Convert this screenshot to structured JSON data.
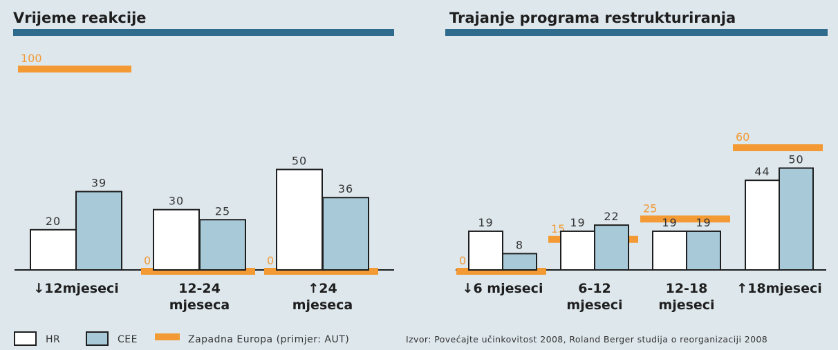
{
  "chart_data": [
    {
      "type": "bar",
      "title": "Vrijeme reakcije",
      "categories": [
        "↓12mjeseci",
        "12-24\nmjeseca",
        "↑24\nmjeseca"
      ],
      "series": [
        {
          "name": "HR",
          "values": [
            20,
            30,
            50
          ]
        },
        {
          "name": "CEE",
          "values": [
            39,
            25,
            36
          ]
        },
        {
          "name": "Zapadna Europa (primjer: AUT)",
          "values": [
            100,
            0,
            0
          ]
        }
      ],
      "ylim": [
        0,
        100
      ]
    },
    {
      "type": "bar",
      "title": "Trajanje programa restrukturiranja",
      "categories": [
        "↓6 mjeseci",
        "6-12\nmjeseci",
        "12-18\nmjeseci",
        "↑18mjeseci"
      ],
      "series": [
        {
          "name": "HR",
          "values": [
            19,
            19,
            19,
            44
          ]
        },
        {
          "name": "CEE",
          "values": [
            8,
            22,
            19,
            50
          ]
        },
        {
          "name": "Zapadna Europa (primjer: AUT)",
          "values": [
            0,
            15,
            25,
            60
          ]
        }
      ],
      "ylim": [
        0,
        60
      ]
    }
  ],
  "legend": {
    "hr": "HR",
    "cee": "CEE",
    "we": "Zapadna Europa  (primjer: AUT)"
  },
  "source": "Izvor: Povećajte učinkovitost 2008, Roland Berger studija o reorganizaciji 2008",
  "colors": {
    "hr": "#ffffff",
    "cee": "#a8cad8",
    "we": "#f39a35",
    "rule": "#2e6b8c",
    "outline": "#1e1e1e"
  }
}
